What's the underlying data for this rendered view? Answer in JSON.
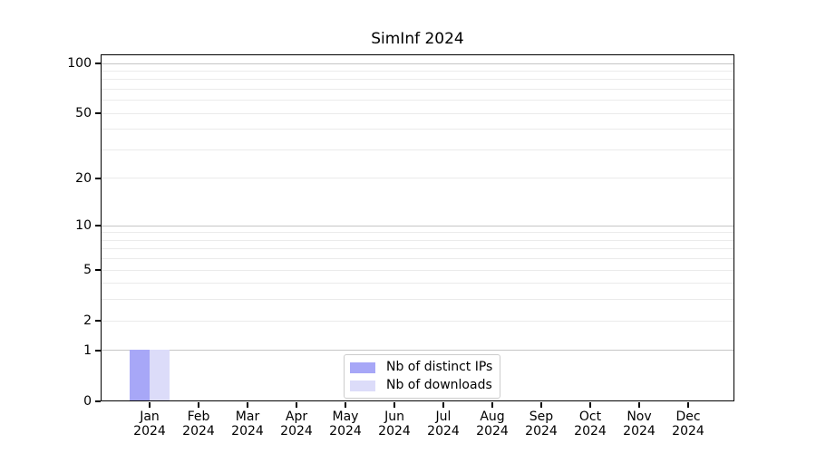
{
  "chart_data": {
    "type": "bar",
    "title": "SimInf 2024",
    "categories": [
      "Jan",
      "Feb",
      "Mar",
      "Apr",
      "May",
      "Jun",
      "Jul",
      "Aug",
      "Sep",
      "Oct",
      "Nov",
      "Dec"
    ],
    "category_year": "2024",
    "series": [
      {
        "name": "Nb of distinct IPs",
        "color": "#a7a7f7",
        "values": [
          1,
          0,
          0,
          0,
          0,
          0,
          0,
          0,
          0,
          0,
          0,
          0
        ]
      },
      {
        "name": "Nb of downloads",
        "color": "#dcdcf9",
        "values": [
          1,
          0,
          0,
          0,
          0,
          0,
          0,
          0,
          0,
          0,
          0,
          0
        ]
      }
    ],
    "xlabel": "",
    "ylabel": "",
    "yaxis": {
      "scale": "log1p",
      "ylim": [
        0,
        113
      ],
      "tick_values": [
        0,
        1,
        2,
        5,
        10,
        20,
        50,
        100
      ],
      "tick_labels": [
        "0",
        "1",
        "2",
        "5",
        "10",
        "20",
        "50",
        "100"
      ],
      "decade_gridlines": [
        1,
        10,
        100
      ],
      "minor_gridlines": [
        2,
        3,
        4,
        5,
        6,
        7,
        8,
        9,
        20,
        30,
        40,
        50,
        60,
        70,
        80,
        90
      ]
    },
    "grid": true,
    "legend": {
      "position": "lower center",
      "border_color": "#cccccc"
    },
    "colors": {
      "decade_gridline": "#c6c6c6",
      "minor_gridline": "#ebebeb",
      "spine": "#000000",
      "background": "#ffffff"
    }
  }
}
